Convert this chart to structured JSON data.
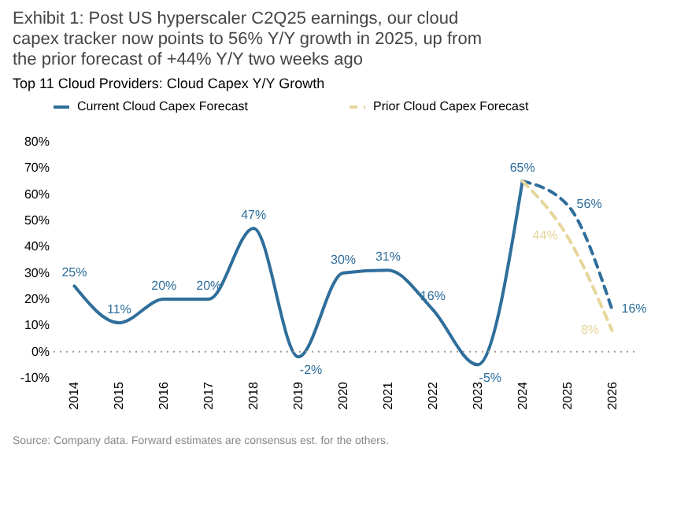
{
  "chart_data": {
    "type": "line",
    "title": "Exhibit 1:    Post US hyperscaler C2Q25 earnings, our cloud capex tracker now points to 56% Y/Y growth in 2025, up from the prior forecast of +44% Y/Y two weeks ago",
    "subtitle": "Top 11 Cloud Providers: Cloud Capex Y/Y Growth",
    "categories": [
      "2014",
      "2015",
      "2016",
      "2017",
      "2018",
      "2019",
      "2020",
      "2021",
      "2022",
      "2023",
      "2024",
      "2025",
      "2026"
    ],
    "series": [
      {
        "name": "Current Cloud Capex Forecast",
        "color": "#2f6e9b",
        "line_style": "solid",
        "values": [
          25,
          11,
          20,
          20,
          47,
          -2,
          30,
          31,
          16,
          -5,
          65,
          null,
          null
        ],
        "value_labels": [
          "25%",
          "11%",
          "20%",
          "20%",
          "47%",
          "-2%",
          "30%",
          "31%",
          "16%",
          "-5%",
          "65%",
          null,
          null
        ]
      },
      {
        "color": "#2f6e9b",
        "line_style": "dashed",
        "values": [
          null,
          null,
          null,
          null,
          null,
          null,
          null,
          null,
          null,
          null,
          65,
          56,
          16
        ],
        "value_labels": [
          null,
          null,
          null,
          null,
          null,
          null,
          null,
          null,
          null,
          null,
          null,
          "56%",
          "16%"
        ]
      },
      {
        "name": "Prior Cloud Capex Forecast",
        "color": "#e6d69a",
        "line_style": "dashed",
        "values": [
          null,
          null,
          null,
          null,
          null,
          null,
          null,
          null,
          null,
          null,
          65,
          44,
          8
        ],
        "value_labels": [
          null,
          null,
          null,
          null,
          null,
          null,
          null,
          null,
          null,
          null,
          null,
          "44%",
          "8%"
        ]
      }
    ],
    "ylim": [
      -10,
      80
    ],
    "yticks": [
      {
        "value": -10,
        "label": "-10%"
      },
      {
        "value": 0,
        "label": "0%"
      },
      {
        "value": 10,
        "label": "10%"
      },
      {
        "value": 20,
        "label": "20%"
      },
      {
        "value": 30,
        "label": "30%"
      },
      {
        "value": 40,
        "label": "40%"
      },
      {
        "value": 50,
        "label": "50%"
      },
      {
        "value": 60,
        "label": "60%"
      },
      {
        "value": 70,
        "label": "70%"
      },
      {
        "value": 80,
        "label": "80%"
      }
    ],
    "ref_lines": [
      {
        "axis": "y",
        "value": 0,
        "color": "#999999",
        "line_style": "dotted"
      }
    ],
    "grid": false,
    "legend": "top",
    "annotations": [
      "Source: Company data. Forward estimates are consensus est. for the others."
    ]
  }
}
